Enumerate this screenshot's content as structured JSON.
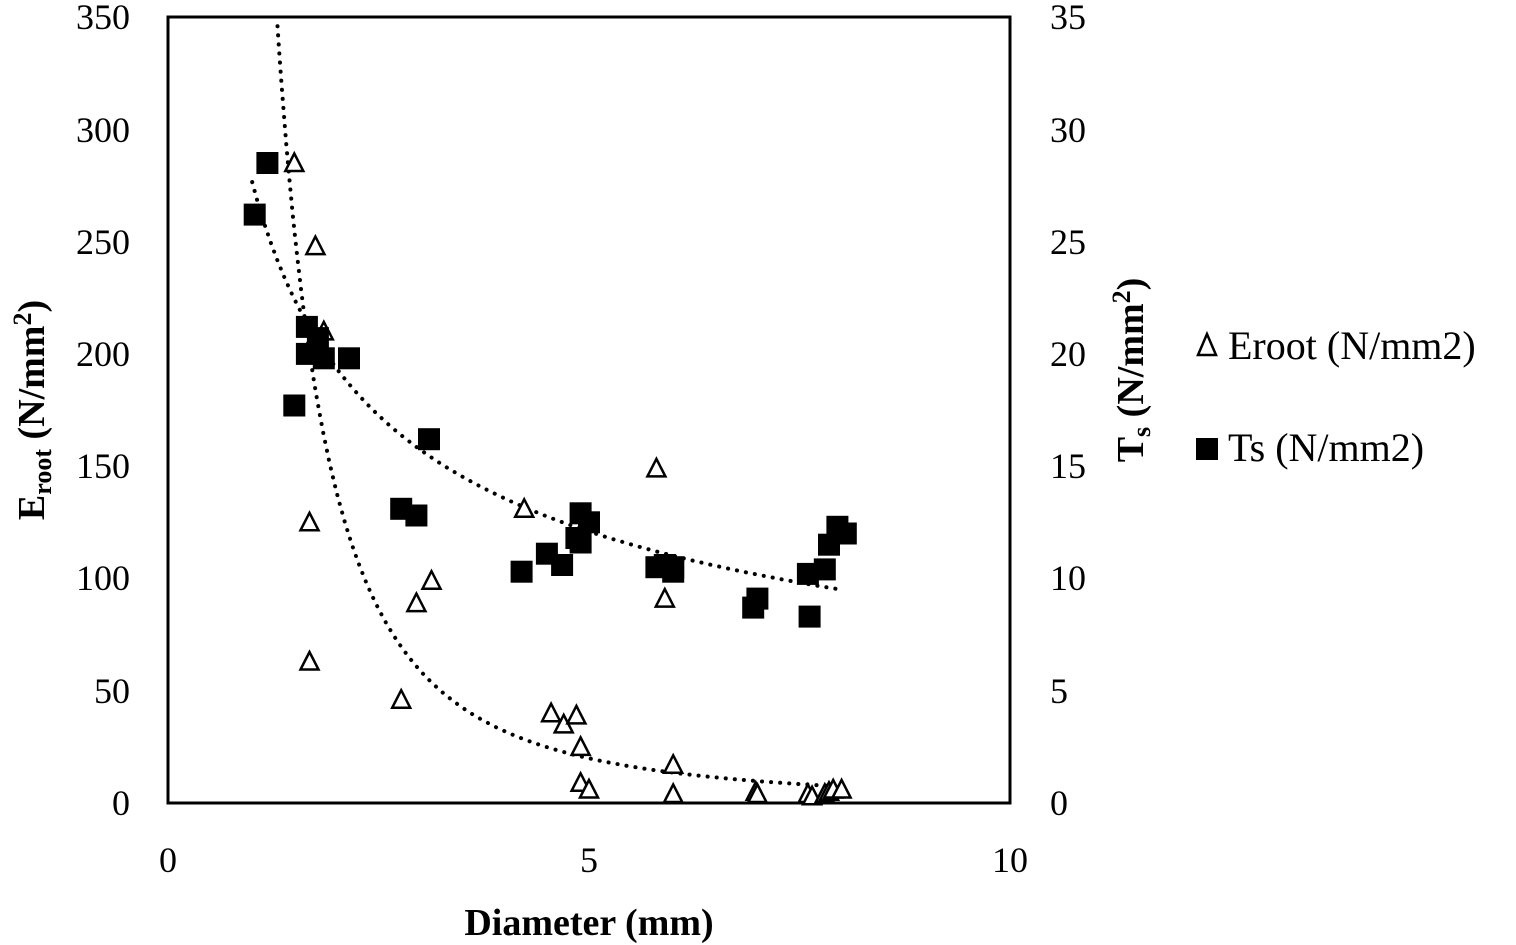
{
  "chart_data": {
    "type": "scatter",
    "title": "",
    "xlabel": "Diameter (mm)",
    "ylabel": {
      "main": "E",
      "sub": "root",
      "rest": " (N/mm",
      "sup": "2",
      "close": ")"
    },
    "y2label": {
      "main": "T",
      "sub": "s",
      "rest": " (N/mm",
      "sup": "2",
      "close": ")"
    },
    "xlim": [
      0,
      10
    ],
    "ylim": [
      0,
      350
    ],
    "y2lim": [
      0,
      35
    ],
    "x_ticks": [
      "0",
      "5",
      "10"
    ],
    "y_ticks": [
      "0",
      "50",
      "100",
      "150",
      "200",
      "250",
      "300",
      "350"
    ],
    "y2_ticks": [
      "0",
      "5",
      "10",
      "15",
      "20",
      "25",
      "30",
      "35"
    ],
    "grid": false,
    "legend_position": "right",
    "series": [
      {
        "name": "Eroot (N/mm2)",
        "axis": "left",
        "marker": "open-triangle",
        "color": "#000000",
        "points": [
          [
            1.5,
            285
          ],
          [
            1.75,
            248
          ],
          [
            1.85,
            210
          ],
          [
            1.68,
            125
          ],
          [
            1.68,
            63
          ],
          [
            2.77,
            46
          ],
          [
            2.95,
            89
          ],
          [
            3.13,
            99
          ],
          [
            4.23,
            131
          ],
          [
            4.55,
            40
          ],
          [
            4.7,
            35
          ],
          [
            4.85,
            39
          ],
          [
            4.9,
            25
          ],
          [
            4.9,
            9
          ],
          [
            5.0,
            6
          ],
          [
            5.8,
            149
          ],
          [
            5.9,
            91
          ],
          [
            6.0,
            17
          ],
          [
            6.0,
            4
          ],
          [
            6.98,
            5
          ],
          [
            7.0,
            4
          ],
          [
            7.6,
            4
          ],
          [
            7.65,
            3
          ],
          [
            7.8,
            4
          ],
          [
            7.85,
            5
          ],
          [
            7.9,
            6
          ],
          [
            8.0,
            6
          ]
        ],
        "trendline": {
          "type": "power",
          "a": 603.3,
          "b": -2.12,
          "x_range": [
            1.3,
            8.0
          ]
        }
      },
      {
        "name": "Ts (N/mm2)",
        "axis": "right",
        "marker": "filled-square",
        "color": "#000000",
        "points": [
          [
            1.03,
            26.2
          ],
          [
            1.18,
            28.5
          ],
          [
            1.5,
            17.7
          ],
          [
            1.65,
            21.2
          ],
          [
            1.65,
            20.0
          ],
          [
            1.78,
            20.7
          ],
          [
            1.85,
            19.8
          ],
          [
            2.15,
            19.8
          ],
          [
            2.77,
            13.1
          ],
          [
            2.95,
            12.8
          ],
          [
            3.1,
            16.2
          ],
          [
            4.2,
            10.3
          ],
          [
            4.5,
            11.1
          ],
          [
            4.68,
            10.6
          ],
          [
            4.85,
            11.8
          ],
          [
            4.9,
            12.9
          ],
          [
            4.9,
            11.6
          ],
          [
            5.0,
            12.5
          ],
          [
            5.8,
            10.5
          ],
          [
            5.9,
            10.6
          ],
          [
            6.0,
            10.5
          ],
          [
            6.0,
            10.3
          ],
          [
            6.95,
            8.7
          ],
          [
            7.0,
            9.1
          ],
          [
            7.6,
            10.2
          ],
          [
            7.62,
            8.3
          ],
          [
            7.8,
            10.4
          ],
          [
            7.85,
            11.5
          ],
          [
            7.95,
            12.3
          ],
          [
            8.05,
            12.0
          ]
        ],
        "trendline": {
          "type": "power",
          "a": 27.65,
          "b": -0.514,
          "x_range": [
            1.0,
            8.0
          ]
        }
      }
    ]
  }
}
